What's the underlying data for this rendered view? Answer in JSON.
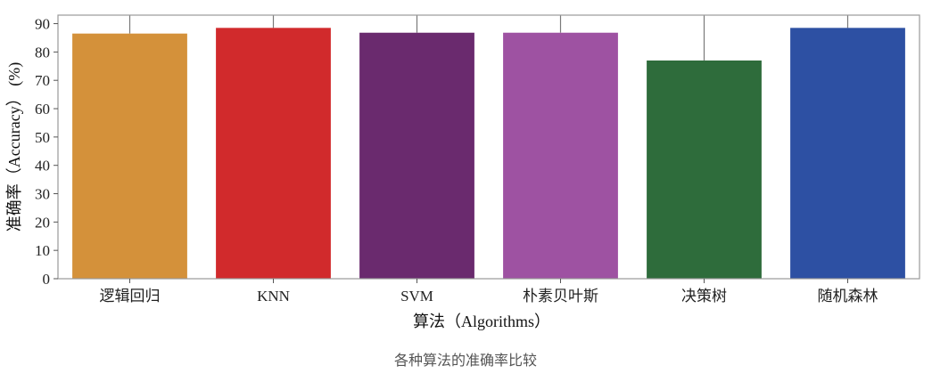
{
  "chart_data": {
    "type": "bar",
    "categories": [
      "逻辑回归",
      "KNN",
      "SVM",
      "朴素贝叶斯",
      "决策树",
      "随机森林"
    ],
    "values": [
      86.5,
      88.5,
      86.8,
      86.8,
      77,
      88.5
    ],
    "colors": [
      "#d4913a",
      "#d12a2c",
      "#6a2a6e",
      "#9e52a2",
      "#2e6c3b",
      "#2d50a3"
    ],
    "xlabel": "算法（Algorithms）",
    "ylabel": "准确率（Accuracy）  (%)",
    "ylim": [
      0,
      93
    ],
    "yticks": [
      0,
      10,
      20,
      30,
      40,
      50,
      60,
      70,
      80,
      90
    ],
    "grid": false,
    "caption": "各种算法的准确率比较"
  }
}
